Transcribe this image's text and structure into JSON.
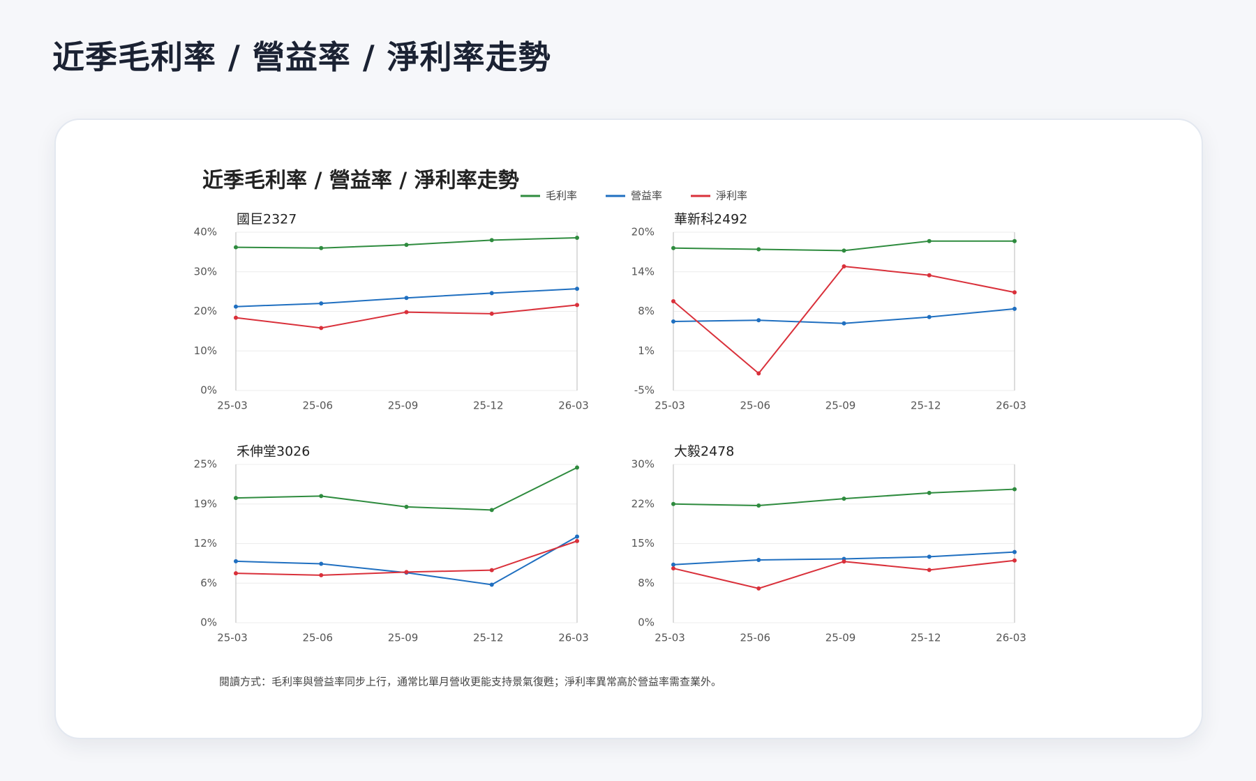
{
  "header": {
    "title": "近季毛利率 / 營益率 / 淨利率走勢"
  },
  "figure": {
    "title": "近季毛利率 / 營益率 / 淨利率走勢",
    "note": "閱讀方式：毛利率與營益率同步上行，通常比單月營收更能支持景氣復甦；淨利率異常高於營益率需查業外。"
  },
  "chart_data": [
    {
      "type": "line",
      "title": "國巨2327",
      "categories": [
        "25-03",
        "25-06",
        "25-09",
        "25-12",
        "26-03"
      ],
      "series": [
        {
          "name": "毛利率",
          "color": "#2e8b3e",
          "values": [
            36.2,
            36,
            36.8,
            38,
            38.6
          ]
        },
        {
          "name": "營益率",
          "color": "#1f6fc0",
          "values": [
            21.2,
            22,
            23.4,
            24.6,
            25.7
          ]
        },
        {
          "name": "淨利率",
          "color": "#d9303a",
          "values": [
            18.4,
            15.8,
            19.8,
            19.4,
            21.6
          ]
        }
      ],
      "ylim": [
        0,
        40
      ],
      "yticks": [
        {
          "value": 0,
          "label": "0%"
        },
        {
          "value": 10,
          "label": "10%"
        },
        {
          "value": 20,
          "label": "20%"
        },
        {
          "value": 30,
          "label": "30%"
        },
        {
          "value": 40,
          "label": "40%"
        }
      ]
    },
    {
      "type": "line",
      "title": "華新科2492",
      "categories": [
        "25-03",
        "25-06",
        "25-09",
        "25-12",
        "26-03"
      ],
      "series": [
        {
          "name": "毛利率",
          "color": "#2e8b3e",
          "values": [
            17.5,
            17.3,
            17.1,
            18.6,
            18.6
          ]
        },
        {
          "name": "營益率",
          "color": "#1f6fc0",
          "values": [
            5.9,
            6.1,
            5.6,
            6.6,
            7.9
          ]
        },
        {
          "name": "淨利率",
          "color": "#d9303a",
          "values": [
            9.1,
            -2.3,
            14.6,
            13.2,
            10.5
          ]
        }
      ],
      "ylim": [
        -5,
        20
      ],
      "yticks": [
        {
          "value": -5,
          "label": "-5%"
        },
        {
          "value": 1.25,
          "label": "1%"
        },
        {
          "value": 7.5,
          "label": "8%"
        },
        {
          "value": 13.75,
          "label": "14%"
        },
        {
          "value": 20,
          "label": "20%"
        }
      ]
    },
    {
      "type": "line",
      "title": "禾伸堂3026",
      "categories": [
        "25-03",
        "25-06",
        "25-09",
        "25-12",
        "26-03"
      ],
      "series": [
        {
          "name": "毛利率",
          "color": "#2e8b3e",
          "values": [
            19.7,
            20,
            18.3,
            17.8,
            24.5
          ]
        },
        {
          "name": "營益率",
          "color": "#1f6fc0",
          "values": [
            9.7,
            9.3,
            7.9,
            6,
            13.6
          ]
        },
        {
          "name": "淨利率",
          "color": "#d9303a",
          "values": [
            7.8,
            7.5,
            8,
            8.3,
            12.9
          ]
        }
      ],
      "ylim": [
        0,
        25
      ],
      "yticks": [
        {
          "value": 0,
          "label": "0%"
        },
        {
          "value": 6.25,
          "label": "6%"
        },
        {
          "value": 12.5,
          "label": "12%"
        },
        {
          "value": 18.75,
          "label": "19%"
        },
        {
          "value": 25,
          "label": "25%"
        }
      ]
    },
    {
      "type": "line",
      "title": "大毅2478",
      "categories": [
        "25-03",
        "25-06",
        "25-09",
        "25-12",
        "26-03"
      ],
      "series": [
        {
          "name": "毛利率",
          "color": "#2e8b3e",
          "values": [
            22.5,
            22.2,
            23.5,
            24.6,
            25.3
          ]
        },
        {
          "name": "營益率",
          "color": "#1f6fc0",
          "values": [
            11,
            11.9,
            12.1,
            12.5,
            13.4
          ]
        },
        {
          "name": "淨利率",
          "color": "#d9303a",
          "values": [
            10.3,
            6.5,
            11.6,
            10,
            11.8
          ]
        }
      ],
      "ylim": [
        0,
        30
      ],
      "yticks": [
        {
          "value": 0,
          "label": "0%"
        },
        {
          "value": 7.5,
          "label": "8%"
        },
        {
          "value": 15,
          "label": "15%"
        },
        {
          "value": 22.5,
          "label": "22%"
        },
        {
          "value": 30,
          "label": "30%"
        }
      ]
    }
  ]
}
